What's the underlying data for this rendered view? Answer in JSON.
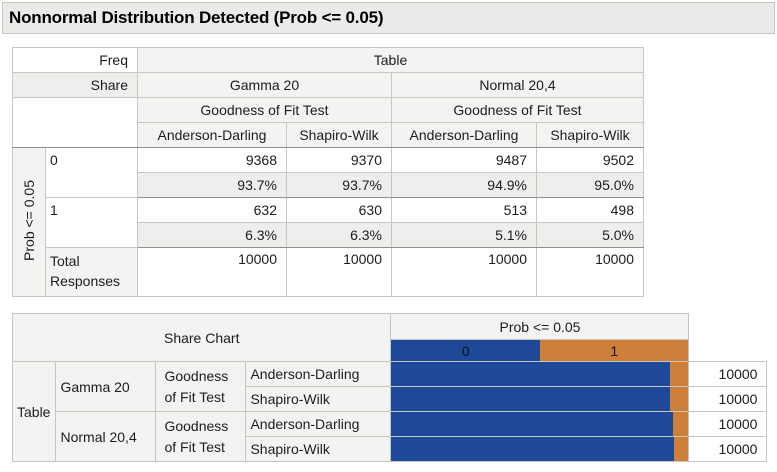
{
  "title": "Nonnormal Distribution Detected (Prob <= 0.05)",
  "freq_table": {
    "measure_labels": [
      "Freq",
      "Share"
    ],
    "column_root_label": "Table",
    "groups": [
      {
        "name": "Gamma 20",
        "subheader": "Goodness of Fit Test",
        "tests": [
          "Anderson-Darling",
          "Shapiro-Wilk"
        ]
      },
      {
        "name": "Normal 20,4",
        "subheader": "Goodness of Fit Test",
        "tests": [
          "Anderson-Darling",
          "Shapiro-Wilk"
        ]
      }
    ],
    "row_axis_label": "Prob <= 0.05",
    "rows": [
      {
        "level": "0",
        "freq": [
          "9368",
          "9370",
          "9487",
          "9502"
        ],
        "share": [
          "93.7%",
          "93.7%",
          "94.9%",
          "95.0%"
        ]
      },
      {
        "level": "1",
        "freq": [
          "632",
          "630",
          "513",
          "498"
        ],
        "share": [
          "6.3%",
          "6.3%",
          "5.1%",
          "5.0%"
        ]
      }
    ],
    "total_label": "Total Responses",
    "totals": [
      "10000",
      "10000",
      "10000",
      "10000"
    ]
  },
  "share_chart": {
    "header": "Share Chart",
    "legend_title": "Prob <= 0.05",
    "legend": [
      {
        "label": "0",
        "color": "#1e4898"
      },
      {
        "label": "1",
        "color": "#ce7f39"
      }
    ],
    "row_group_label": "Table",
    "groups": [
      {
        "distribution": "Gamma 20",
        "gof_label": "Goodness of Fit Test"
      },
      {
        "distribution": "Normal 20,4",
        "gof_label": "Goodness of Fit Test"
      }
    ],
    "bars": [
      {
        "group": "Gamma 20",
        "test": "Anderson-Darling",
        "pct0": 93.7,
        "pct1": 6.3,
        "total": "10000"
      },
      {
        "group": "Gamma 20",
        "test": "Shapiro-Wilk",
        "pct0": 93.7,
        "pct1": 6.3,
        "total": "10000"
      },
      {
        "group": "Normal 20,4",
        "test": "Anderson-Darling",
        "pct0": 94.9,
        "pct1": 5.1,
        "total": "10000"
      },
      {
        "group": "Normal 20,4",
        "test": "Shapiro-Wilk",
        "pct0": 95.0,
        "pct1": 5.0,
        "total": "10000"
      }
    ]
  },
  "chart_data": {
    "type": "bar",
    "stacked": true,
    "orientation": "horizontal",
    "title": "Share Chart",
    "legend_title": "Prob <= 0.05",
    "legend_position": "top",
    "categories": [
      "Gamma 20 / Anderson-Darling",
      "Gamma 20 / Shapiro-Wilk",
      "Normal 20,4 / Anderson-Darling",
      "Normal 20,4 / Shapiro-Wilk"
    ],
    "series": [
      {
        "name": "0",
        "color": "#1e4898",
        "values": [
          93.7,
          93.7,
          94.9,
          95.0
        ]
      },
      {
        "name": "1",
        "color": "#ce7f39",
        "values": [
          6.3,
          6.3,
          5.1,
          5.0
        ]
      }
    ],
    "totals": [
      10000,
      10000,
      10000,
      10000
    ],
    "xlim": [
      0,
      100
    ]
  }
}
